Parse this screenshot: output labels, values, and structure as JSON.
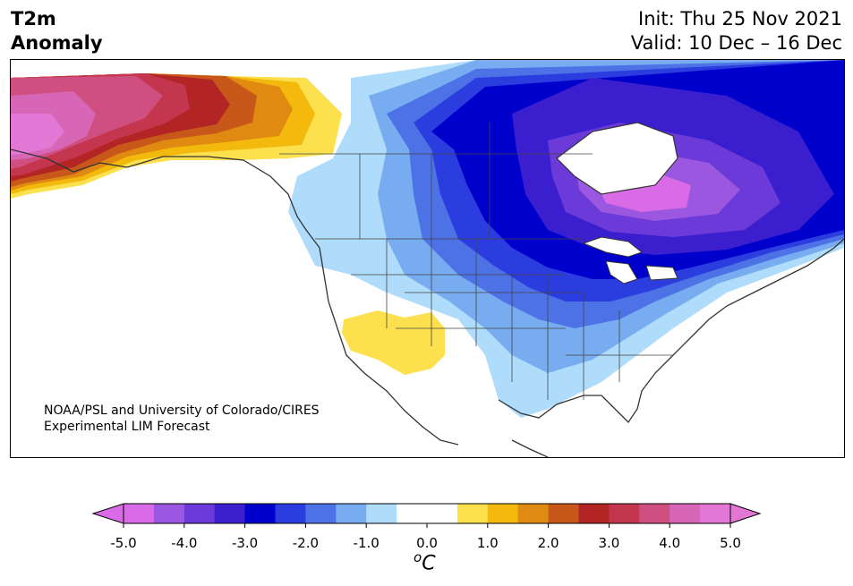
{
  "title": {
    "line1": "T2m",
    "line2": "Anomaly"
  },
  "dates": {
    "init": "Init: Thu 25 Nov 2021",
    "valid": "Valid: 10 Dec – 16 Dec"
  },
  "credit": {
    "line1": "NOAA/PSL and University of Colorado/CIRES",
    "line2": "Experimental LIM Forecast"
  },
  "colorbar": {
    "under_color": "#d96ce6",
    "over_color": "#e377d6",
    "colors": [
      "#d96ce6",
      "#9b57e0",
      "#6b3ad8",
      "#3b1fcf",
      "#0000cd",
      "#2c3de0",
      "#4d72e6",
      "#78acf0",
      "#aedcfa",
      "#ffffff",
      "#ffffff",
      "#fce04d",
      "#f3b90c",
      "#e08a12",
      "#c8581a",
      "#b32424",
      "#c4354e",
      "#cf5080",
      "#d866b6",
      "#e377d6"
    ],
    "tick_labels": [
      "-5.0",
      "-4.0",
      "-3.0",
      "-2.0",
      "-1.0",
      "0.0",
      "1.0",
      "2.0",
      "3.0",
      "4.0",
      "5.0"
    ],
    "units_symbol": "C",
    "units_superscript": "o"
  },
  "regions": [
    {
      "name": "alaska-warm-anomaly",
      "level": "4.0 to 5.0",
      "color": "#e377d6"
    },
    {
      "name": "yukon-warm-anomaly",
      "level": "1.0 to 3.0",
      "color": "#f3b90c"
    },
    {
      "name": "canada-cold-anomaly",
      "level": "-2.0 to -4.0",
      "color": "#0000cd"
    },
    {
      "name": "southwest-warm-anomaly",
      "level": "0.5 to 1.0",
      "color": "#fce04d"
    }
  ]
}
